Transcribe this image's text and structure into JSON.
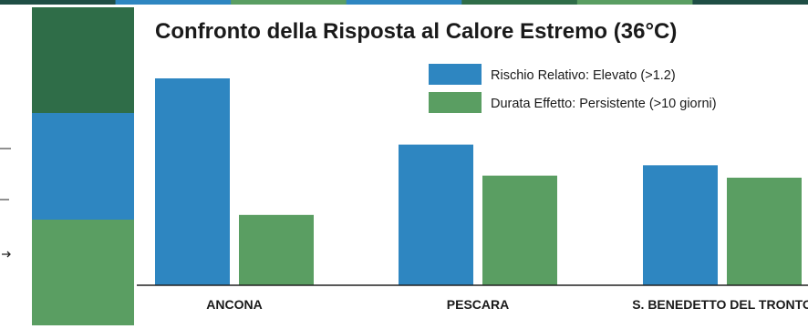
{
  "colors": {
    "blue": "#2e86c1",
    "green": "#5a9e62",
    "dark_green": "#2f6d48",
    "top_strip_dark": "#1f4e45",
    "axis": "#222222",
    "text": "#1a1a1a"
  },
  "chart_data": {
    "type": "bar",
    "title": "Confronto della Risposta al Calore Estremo (36°C)",
    "categories": [
      "ANCONA",
      "PESCARA",
      "S. BENEDETTO DEL TRONTO"
    ],
    "series": [
      {
        "name": "Rischio Relativo: Elevato (>1.2)",
        "color": "#2e86c1",
        "values": [
          100,
          68,
          58
        ]
      },
      {
        "name": "Durata Effetto: Persistente (>10 giorni)",
        "color": "#5a9e62",
        "values": [
          34,
          53,
          52
        ]
      }
    ],
    "ylim": [
      0,
      100
    ],
    "grid": false,
    "legend_position": "top-right",
    "xlabel": "",
    "ylabel": ""
  },
  "left_panel": {
    "stack_colors": [
      "#2f6d48",
      "#2e86c1",
      "#5a9e62"
    ]
  }
}
